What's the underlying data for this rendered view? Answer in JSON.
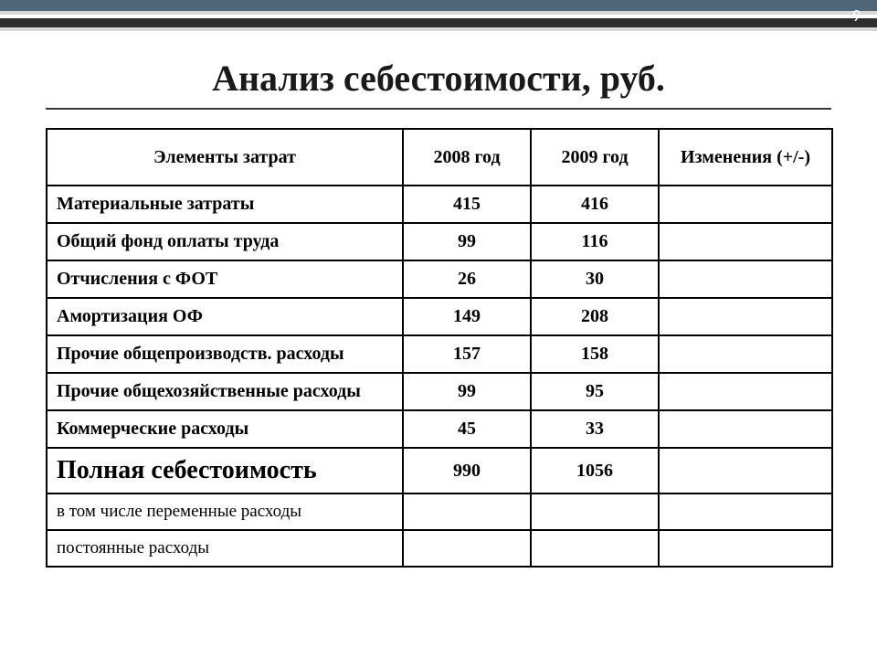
{
  "page_number": "9",
  "title": "Анализ себестоимости, руб.",
  "table": {
    "columns": [
      "Элементы затрат",
      "2008 год",
      "2009 год",
      "Изменения (+/-)"
    ],
    "rows": [
      {
        "label": "Материальные затраты",
        "y2008": "415",
        "y2009": "416",
        "delta": "",
        "kind": "normal"
      },
      {
        "label": "Общий фонд оплаты труда",
        "y2008": "99",
        "y2009": "116",
        "delta": "",
        "kind": "normal"
      },
      {
        "label": "Отчисления с ФОТ",
        "y2008": "26",
        "y2009": "30",
        "delta": "",
        "kind": "normal"
      },
      {
        "label": "Амортизация ОФ",
        "y2008": "149",
        "y2009": "208",
        "delta": "",
        "kind": "normal"
      },
      {
        "label": "Прочие общепроизводств. расходы",
        "y2008": "157",
        "y2009": "158",
        "delta": "",
        "kind": "normal"
      },
      {
        "label": "Прочие общехозяйственные расходы",
        "y2008": "99",
        "y2009": "95",
        "delta": "",
        "kind": "normal"
      },
      {
        "label": "Коммерческие расходы",
        "y2008": "45",
        "y2009": "33",
        "delta": "",
        "kind": "normal"
      },
      {
        "label": "Полная себестоимость",
        "y2008": "990",
        "y2009": "1056",
        "delta": "",
        "kind": "total"
      },
      {
        "label": "в том числе переменные расходы",
        "y2008": "",
        "y2009": "",
        "delta": "",
        "kind": "sub"
      },
      {
        "label": "постоянные расходы",
        "y2008": "",
        "y2009": "",
        "delta": "",
        "kind": "sub"
      }
    ],
    "header_fontsize": 20,
    "cell_fontsize": 20,
    "total_label_fontsize": 28,
    "border_color": "#000000",
    "background_color": "#ffffff"
  },
  "decor": {
    "stripe_colors": [
      "#4e6778",
      "#d8d8d8",
      "#ffffff",
      "#2e2e2e",
      "#d8d8d8"
    ],
    "title_rule_color": "#3a3a3a",
    "title_color": "#1a1a1a",
    "title_fontsize": 40
  }
}
